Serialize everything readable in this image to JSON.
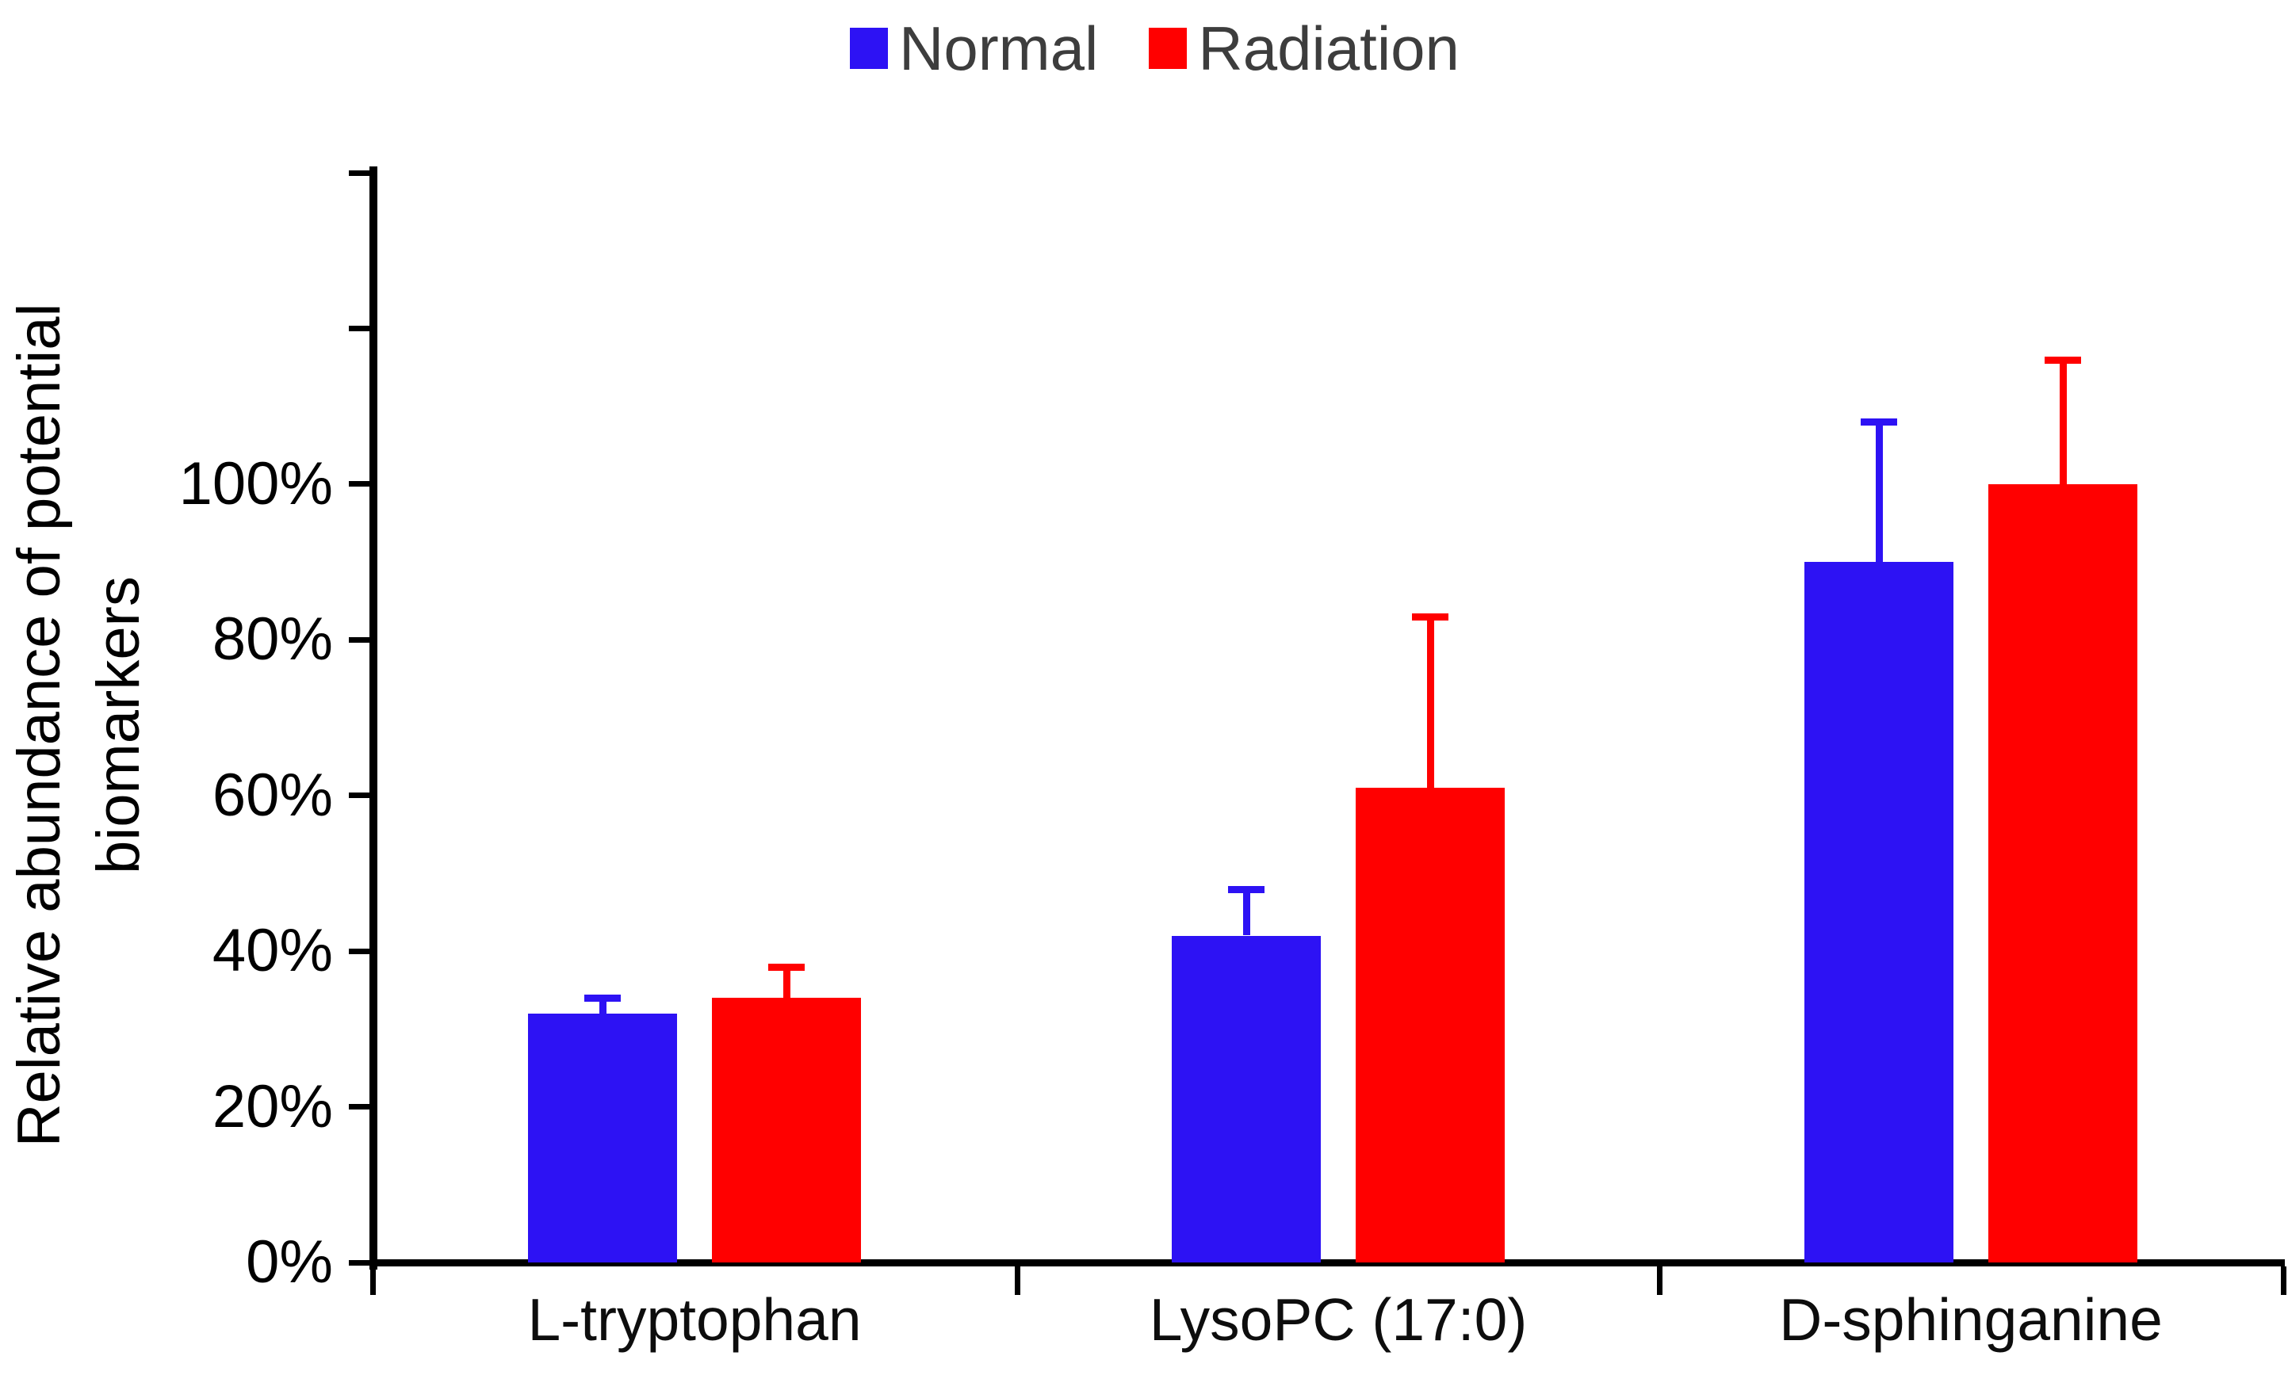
{
  "legend": {
    "items": [
      {
        "label": "Normal",
        "color": "#2d12f4"
      },
      {
        "label": "Radiation",
        "color": "#ff0000"
      }
    ]
  },
  "chart_data": {
    "type": "bar",
    "title": "",
    "categories": [
      "L-tryptophan",
      "LysoPC (17:0)",
      "D-sphinganine"
    ],
    "series": [
      {
        "name": "Normal",
        "color": "#2d12f4",
        "values": [
          32,
          42,
          90
        ],
        "error_plus": [
          2,
          6,
          18
        ]
      },
      {
        "name": "Radiation",
        "color": "#ff0000",
        "values": [
          34,
          61,
          100
        ],
        "error_plus": [
          4,
          22,
          16
        ]
      }
    ],
    "ylabel": "Relative abundance of potential biomarkers",
    "ylabel_lines": [
      "Relative abundance of potential",
      "biomarkers"
    ],
    "yticks_labeled": [
      "0%",
      "20%",
      "40%",
      "60%",
      "80%",
      "100%"
    ],
    "y_axis": {
      "min": 0,
      "max": 140,
      "tick_step": 20,
      "labeled_max": 100,
      "unit": "%"
    },
    "grid": false,
    "legend_position": "top-center",
    "error_bars": "plus_only"
  }
}
